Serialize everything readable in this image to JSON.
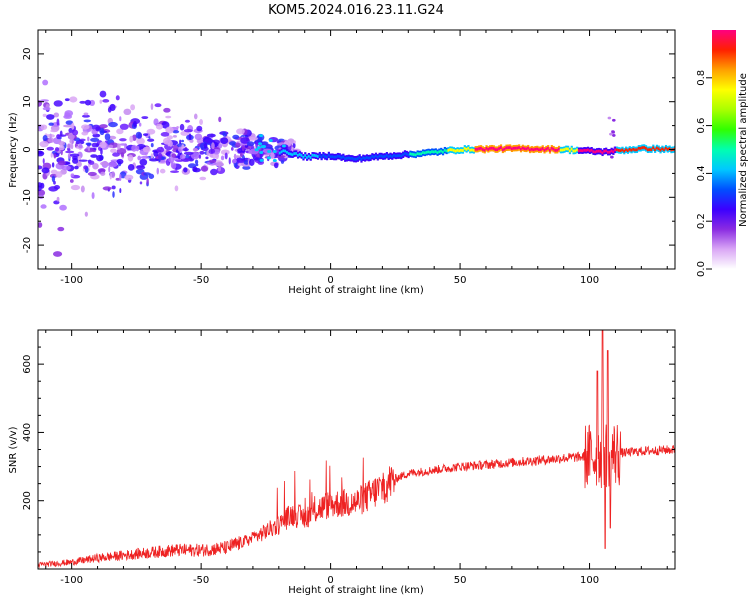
{
  "figure_title": "KOM5.2024.016.23.11.G24",
  "chart_data": [
    {
      "type": "heatmap",
      "title": "KOM5.2024.016.23.11.G24",
      "xlabel": "Height of straight line (km)",
      "ylabel": "Frequency (Hz)",
      "xlim": [
        -113,
        133
      ],
      "ylim": [
        -25,
        25
      ],
      "x_ticks": [
        -100,
        -50,
        0,
        50,
        100
      ],
      "y_ticks": [
        -20,
        -10,
        0,
        10,
        20
      ],
      "x_tick_labels": [
        "-100",
        "-50",
        "0",
        "50",
        "100"
      ],
      "y_tick_labels": [
        "-20",
        "-10",
        "0",
        "10",
        "20"
      ],
      "ridge_frequency": [
        {
          "x": -18,
          "y": -0.5
        },
        {
          "x": -10,
          "y": -1.5
        },
        {
          "x": 0,
          "y": -1.3
        },
        {
          "x": 8,
          "y": -2.0
        },
        {
          "x": 20,
          "y": -1.4
        },
        {
          "x": 35,
          "y": -0.8
        },
        {
          "x": 50,
          "y": 0.0
        },
        {
          "x": 70,
          "y": 0.2
        },
        {
          "x": 90,
          "y": 0.0
        },
        {
          "x": 105,
          "y": -0.5
        },
        {
          "x": 120,
          "y": 0.2
        },
        {
          "x": 133,
          "y": 0.0
        }
      ],
      "colorbar": {
        "label": "Normalized spectral amplitude",
        "range": [
          0,
          1
        ],
        "ticks": [
          0.0,
          0.2,
          0.4,
          0.6,
          0.8
        ],
        "tick_labels": [
          "0.0",
          "0.2",
          "0.4",
          "0.6",
          "0.8"
        ],
        "colormap": [
          "#ffffff",
          "#d9a6f5",
          "#8a2be2",
          "#3b00ff",
          "#0050ff",
          "#00c8ff",
          "#00ffb0",
          "#30ff00",
          "#aaff00",
          "#ffff00",
          "#ffa000",
          "#ff2000",
          "#ff0080"
        ]
      },
      "grid": false
    },
    {
      "type": "line",
      "xlabel": "Height of straight line (km)",
      "ylabel": "SNR (v/v)",
      "xlim": [
        -113,
        133
      ],
      "ylim": [
        0,
        700
      ],
      "x_ticks": [
        -100,
        -50,
        0,
        50,
        100
      ],
      "y_ticks": [
        200,
        400,
        600
      ],
      "x_tick_labels": [
        "-100",
        "-50",
        "0",
        "50",
        "100"
      ],
      "y_tick_labels": [
        "200",
        "400",
        "600"
      ],
      "series": [
        {
          "color": "#ee2222",
          "trend": [
            {
              "x": -113,
              "y": 12
            },
            {
              "x": -100,
              "y": 20
            },
            {
              "x": -90,
              "y": 32
            },
            {
              "x": -80,
              "y": 40
            },
            {
              "x": -70,
              "y": 48
            },
            {
              "x": -60,
              "y": 55
            },
            {
              "x": -50,
              "y": 55
            },
            {
              "x": -40,
              "y": 62
            },
            {
              "x": -30,
              "y": 90
            },
            {
              "x": -20,
              "y": 130
            },
            {
              "x": -15,
              "y": 160
            },
            {
              "x": -10,
              "y": 150
            },
            {
              "x": -5,
              "y": 175
            },
            {
              "x": 0,
              "y": 190
            },
            {
              "x": 10,
              "y": 195
            },
            {
              "x": 15,
              "y": 215
            },
            {
              "x": 20,
              "y": 240
            },
            {
              "x": 25,
              "y": 265
            },
            {
              "x": 30,
              "y": 280
            },
            {
              "x": 40,
              "y": 290
            },
            {
              "x": 50,
              "y": 300
            },
            {
              "x": 60,
              "y": 305
            },
            {
              "x": 70,
              "y": 312
            },
            {
              "x": 80,
              "y": 318
            },
            {
              "x": 90,
              "y": 325
            },
            {
              "x": 100,
              "y": 330
            },
            {
              "x": 110,
              "y": 338
            },
            {
              "x": 120,
              "y": 345
            },
            {
              "x": 133,
              "y": 350
            }
          ],
          "peaks": [
            {
              "x": 101,
              "y": 320
            },
            {
              "x": 103,
              "y": 580
            },
            {
              "x": 105,
              "y": 700
            },
            {
              "x": 106,
              "y": 60
            },
            {
              "x": 107,
              "y": 640
            },
            {
              "x": 108,
              "y": 120
            }
          ]
        }
      ],
      "grid": false
    }
  ]
}
